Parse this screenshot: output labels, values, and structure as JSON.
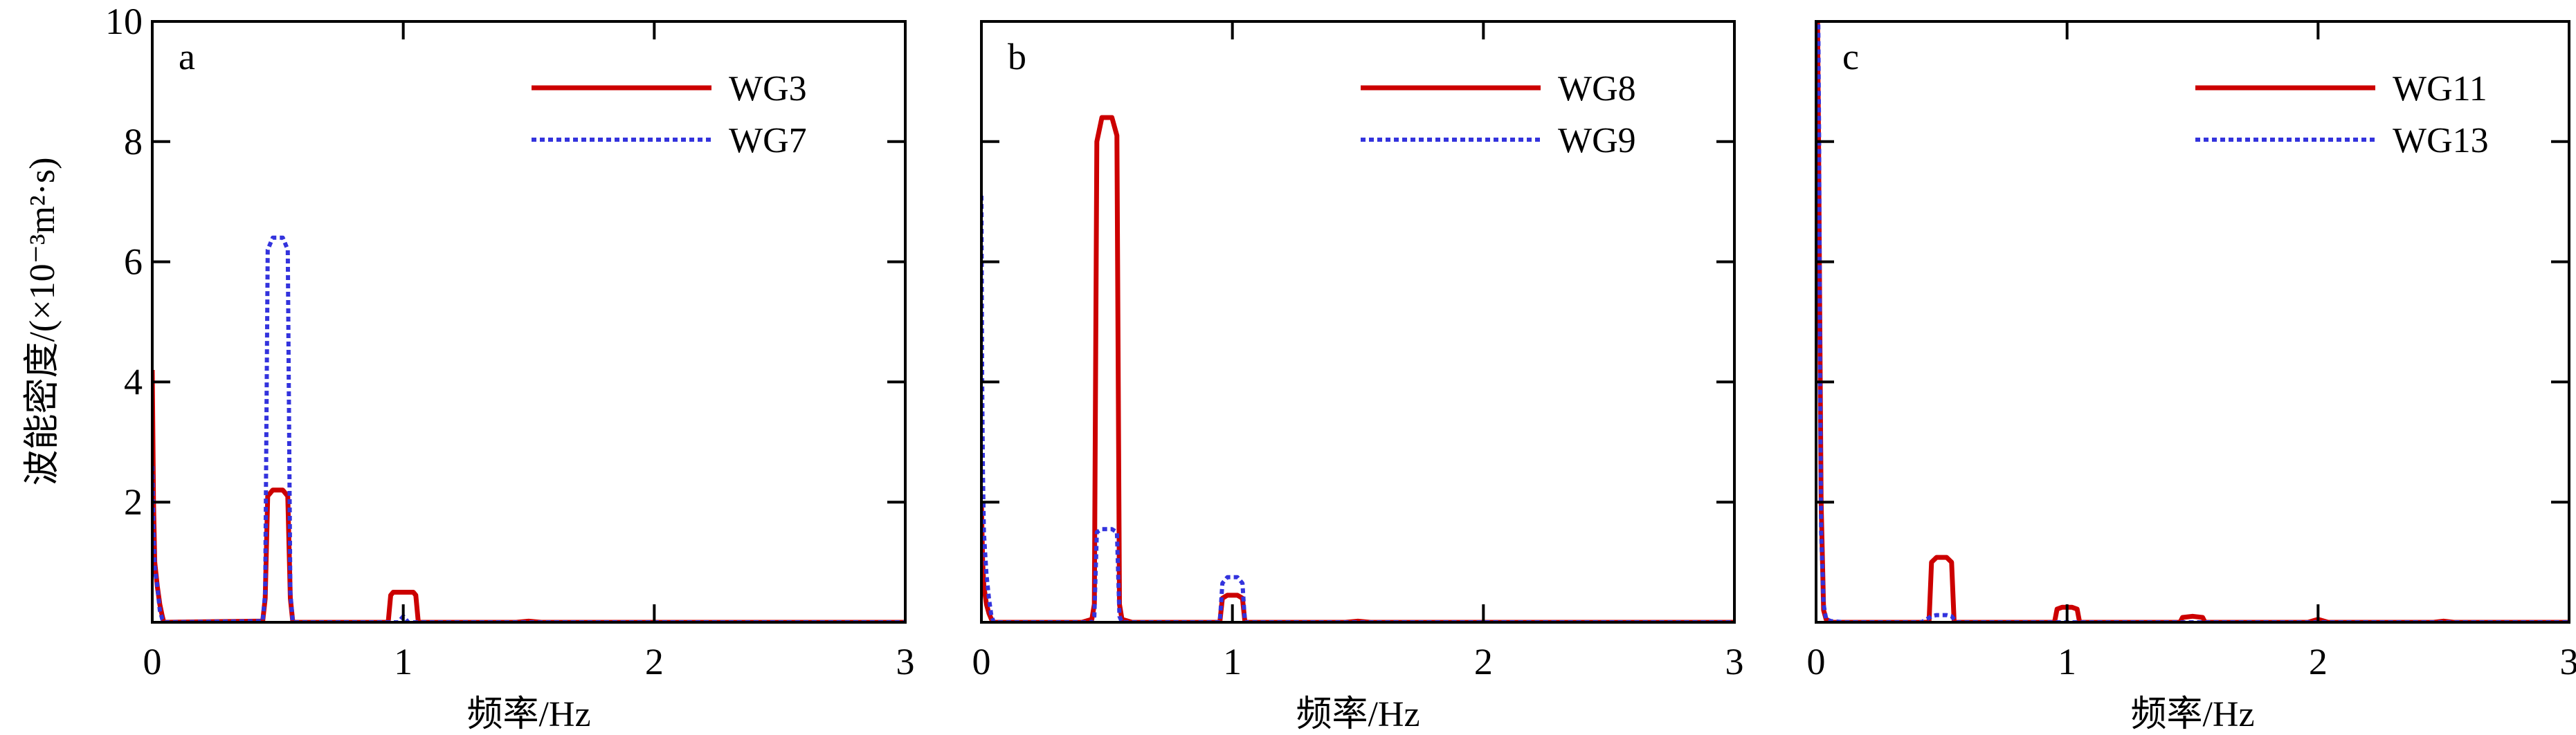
{
  "chart_data": [
    {
      "type": "line",
      "panel_label": "a",
      "xlabel": "频率/Hz",
      "ylabel": "波能密度/(×10⁻³m²·s)",
      "xlim": [
        0,
        3
      ],
      "ylim": [
        0,
        10
      ],
      "xticks": [
        "0",
        "1",
        "2",
        "3"
      ],
      "yticks": [
        "2",
        "4",
        "6",
        "8",
        "10"
      ],
      "legend_position": "top-right",
      "series": [
        {
          "name": "WG3",
          "color": "#cc0000",
          "style": "solid",
          "x": [
            0,
            0.005,
            0.01,
            0.02,
            0.03,
            0.04,
            0.045,
            0.05,
            0.44,
            0.45,
            0.46,
            0.48,
            0.52,
            0.54,
            0.55,
            0.56,
            0.94,
            0.95,
            0.96,
            1.04,
            1.05,
            1.06,
            1.45,
            1.5,
            1.55,
            3
          ],
          "y": [
            4.2,
            2.0,
            1.0,
            0.6,
            0.3,
            0.1,
            0.02,
            0,
            0.02,
            0.4,
            2.1,
            2.2,
            2.2,
            2.1,
            0.4,
            0,
            0,
            0.45,
            0.5,
            0.5,
            0.45,
            0,
            0,
            0.02,
            0,
            0
          ]
        },
        {
          "name": "WG7",
          "color": "#3333dd",
          "style": "dotted",
          "x": [
            0,
            0.005,
            0.01,
            0.02,
            0.03,
            0.04,
            0.05,
            0.44,
            0.45,
            0.46,
            0.48,
            0.52,
            0.54,
            0.55,
            0.56,
            0.98,
            1.0,
            1.02,
            3
          ],
          "y": [
            2.6,
            1.5,
            0.9,
            0.6,
            0.2,
            0.05,
            0,
            0.02,
            0.5,
            6.2,
            6.4,
            6.4,
            6.2,
            0.5,
            0,
            0,
            0.1,
            0,
            0
          ]
        }
      ]
    },
    {
      "type": "line",
      "panel_label": "b",
      "xlabel": "频率/Hz",
      "xlim": [
        0,
        3
      ],
      "ylim": [
        0,
        10
      ],
      "xticks": [
        "0",
        "1",
        "2",
        "3"
      ],
      "legend_position": "top-right",
      "series": [
        {
          "name": "WG8",
          "color": "#cc0000",
          "style": "solid",
          "x": [
            0,
            0.005,
            0.01,
            0.02,
            0.03,
            0.04,
            0.05,
            0.4,
            0.44,
            0.45,
            0.46,
            0.48,
            0.52,
            0.54,
            0.55,
            0.56,
            0.6,
            0.95,
            0.96,
            0.98,
            1.02,
            1.04,
            1.05,
            1.45,
            1.5,
            1.55,
            2.0,
            3
          ],
          "y": [
            2.0,
            1.0,
            0.6,
            0.3,
            0.15,
            0.05,
            0,
            0,
            0.05,
            0.3,
            8.0,
            8.4,
            8.4,
            8.1,
            0.3,
            0.05,
            0,
            0,
            0.4,
            0.45,
            0.45,
            0.4,
            0,
            0,
            0.02,
            0,
            0,
            0
          ]
        },
        {
          "name": "WG9",
          "color": "#3333dd",
          "style": "dotted",
          "x": [
            0,
            0.003,
            0.006,
            0.01,
            0.02,
            0.03,
            0.04,
            0.05,
            0.44,
            0.45,
            0.46,
            0.48,
            0.52,
            0.54,
            0.55,
            0.56,
            0.95,
            0.96,
            0.98,
            1.02,
            1.04,
            1.05,
            3
          ],
          "y": [
            7.1,
            4.0,
            2.5,
            1.5,
            0.8,
            0.4,
            0.1,
            0,
            0,
            0.1,
            1.5,
            1.55,
            1.55,
            1.5,
            0.1,
            0,
            0,
            0.65,
            0.75,
            0.75,
            0.65,
            0,
            0
          ]
        }
      ]
    },
    {
      "type": "line",
      "panel_label": "c",
      "xlabel": "频率/Hz",
      "xlim": [
        0,
        3
      ],
      "ylim": [
        0,
        10
      ],
      "xticks": [
        "0",
        "1",
        "2",
        "3"
      ],
      "legend_position": "top-right",
      "series": [
        {
          "name": "WG11",
          "color": "#cc0000",
          "style": "solid",
          "x": [
            0.005,
            0.01,
            0.015,
            0.02,
            0.03,
            0.04,
            0.06,
            0.45,
            0.46,
            0.48,
            0.52,
            0.54,
            0.55,
            0.95,
            0.96,
            0.98,
            1.02,
            1.04,
            1.05,
            1.45,
            1.46,
            1.5,
            1.54,
            1.55,
            1.96,
            2.0,
            2.04,
            2.46,
            2.5,
            2.54,
            3
          ],
          "y": [
            10.5,
            8.0,
            5.0,
            2.0,
            0.2,
            0.05,
            0,
            0,
            1.0,
            1.08,
            1.08,
            1.0,
            0,
            0,
            0.22,
            0.25,
            0.25,
            0.22,
            0,
            0,
            0.08,
            0.1,
            0.08,
            0,
            0,
            0.05,
            0,
            0,
            0.02,
            0,
            0
          ]
        },
        {
          "name": "WG13",
          "color": "#3333dd",
          "style": "dotted",
          "x": [
            0.008,
            0.012,
            0.016,
            0.02,
            0.03,
            0.04,
            0.06,
            0.12,
            0.42,
            0.46,
            0.48,
            0.52,
            0.54,
            0.56,
            3
          ],
          "y": [
            10.5,
            8.0,
            4.0,
            1.5,
            0.3,
            0.05,
            0.02,
            0,
            0,
            0.1,
            0.12,
            0.12,
            0.1,
            0,
            0
          ]
        }
      ]
    }
  ]
}
